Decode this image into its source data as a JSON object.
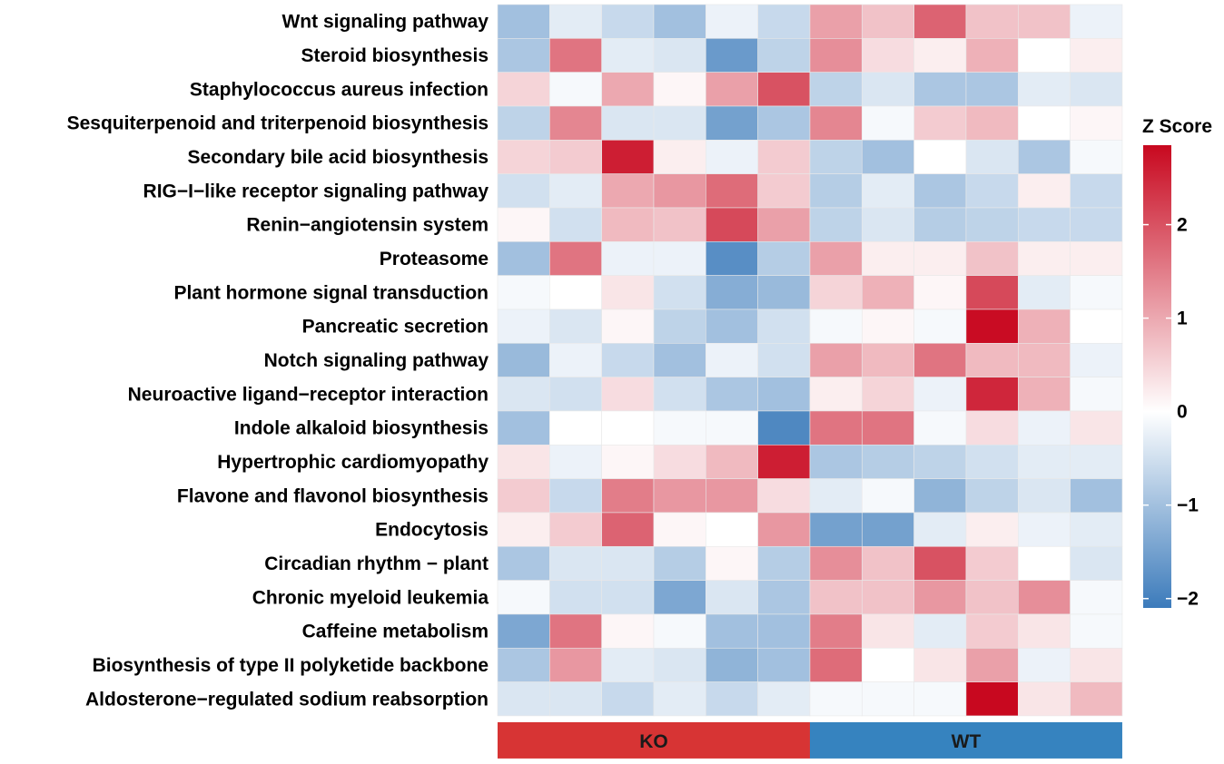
{
  "chart_data": {
    "type": "heatmap",
    "rows": [
      "Wnt signaling pathway",
      "Steroid biosynthesis",
      "Staphylococcus aureus infection",
      "Sesquiterpenoid and triterpenoid biosynthesis",
      "Secondary bile acid biosynthesis",
      "RIG−I−like receptor signaling pathway",
      "Renin−angiotensin system",
      "Proteasome",
      "Plant hormone signal transduction",
      "Pancreatic secretion",
      "Notch signaling pathway",
      "Neuroactive ligand−receptor interaction",
      "Indole alkaloid biosynthesis",
      "Hypertrophic cardiomyopathy",
      "Flavone and flavonol biosynthesis",
      "Endocytosis",
      "Circadian rhythm − plant",
      "Chronic myeloid leukemia",
      "Caffeine metabolism",
      "Biosynthesis of type II polyketide backbone",
      "Aldosterone−regulated sodium reabsorption"
    ],
    "groups": [
      {
        "label": "KO",
        "columns": 6,
        "color": "#d73434"
      },
      {
        "label": "WT",
        "columns": 6,
        "color": "#3683bf"
      }
    ],
    "values": [
      [
        -1.0,
        -0.3,
        -0.6,
        -1.0,
        -0.2,
        -0.6,
        1.1,
        0.7,
        1.8,
        0.7,
        0.7,
        -0.2
      ],
      [
        -0.9,
        1.6,
        -0.3,
        -0.4,
        -1.6,
        -0.7,
        1.3,
        0.4,
        0.2,
        0.9,
        0.0,
        0.2
      ],
      [
        0.5,
        -0.1,
        1.0,
        0.1,
        1.1,
        2.0,
        -0.7,
        -0.4,
        -0.9,
        -0.9,
        -0.3,
        -0.4
      ],
      [
        -0.7,
        1.4,
        -0.4,
        -0.4,
        -1.5,
        -0.9,
        1.4,
        -0.1,
        0.6,
        0.8,
        0.0,
        0.1
      ],
      [
        0.5,
        0.6,
        2.6,
        0.2,
        -0.2,
        0.6,
        -0.7,
        -1.0,
        0.0,
        -0.4,
        -0.9,
        -0.1
      ],
      [
        -0.5,
        -0.3,
        1.0,
        1.2,
        1.7,
        0.6,
        -0.8,
        -0.3,
        -0.9,
        -0.6,
        0.2,
        -0.6
      ],
      [
        0.1,
        -0.5,
        0.8,
        0.7,
        2.1,
        1.1,
        -0.7,
        -0.4,
        -0.8,
        -0.7,
        -0.6,
        -0.6
      ],
      [
        -1.0,
        1.6,
        -0.2,
        -0.2,
        -1.8,
        -0.8,
        1.1,
        0.2,
        0.2,
        0.7,
        0.2,
        0.2
      ],
      [
        -0.1,
        0.0,
        0.3,
        -0.5,
        -1.3,
        -1.1,
        0.5,
        0.9,
        0.1,
        2.1,
        -0.3,
        -0.1
      ],
      [
        -0.2,
        -0.4,
        0.1,
        -0.7,
        -1.0,
        -0.5,
        -0.1,
        0.1,
        -0.1,
        2.8,
        0.9,
        0.0
      ],
      [
        -1.1,
        -0.2,
        -0.6,
        -1.0,
        -0.2,
        -0.5,
        1.1,
        0.8,
        1.6,
        0.8,
        0.8,
        -0.2
      ],
      [
        -0.4,
        -0.5,
        0.4,
        -0.5,
        -0.9,
        -1.0,
        0.2,
        0.5,
        -0.2,
        2.5,
        0.9,
        -0.1
      ],
      [
        -1.0,
        0.0,
        0.0,
        -0.1,
        -0.1,
        -1.9,
        1.6,
        1.6,
        -0.1,
        0.4,
        -0.2,
        0.3
      ],
      [
        0.3,
        -0.2,
        0.1,
        0.4,
        0.8,
        2.6,
        -0.9,
        -0.8,
        -0.7,
        -0.5,
        -0.3,
        -0.3
      ],
      [
        0.6,
        -0.6,
        1.5,
        1.2,
        1.2,
        0.4,
        -0.3,
        -0.1,
        -1.2,
        -0.7,
        -0.4,
        -1.0
      ],
      [
        0.2,
        0.6,
        1.8,
        0.1,
        0.0,
        1.2,
        -1.5,
        -1.5,
        -0.3,
        0.2,
        -0.2,
        -0.3
      ],
      [
        -0.9,
        -0.4,
        -0.4,
        -0.8,
        0.1,
        -0.8,
        1.3,
        0.7,
        2.0,
        0.6,
        0.0,
        -0.4
      ],
      [
        -0.1,
        -0.5,
        -0.5,
        -1.4,
        -0.4,
        -0.9,
        0.7,
        0.7,
        1.2,
        0.7,
        1.3,
        -0.1
      ],
      [
        -1.4,
        1.6,
        0.1,
        -0.1,
        -1.0,
        -1.0,
        1.5,
        0.3,
        -0.3,
        0.6,
        0.3,
        -0.1
      ],
      [
        -0.9,
        1.2,
        -0.3,
        -0.4,
        -1.2,
        -1.0,
        1.7,
        0.0,
        0.3,
        1.1,
        -0.2,
        0.3
      ],
      [
        -0.4,
        -0.4,
        -0.6,
        -0.3,
        -0.6,
        -0.3,
        -0.1,
        -0.1,
        -0.1,
        3.2,
        0.3,
        0.8
      ]
    ],
    "legend": {
      "title": "Z Score",
      "min": -2.1,
      "max": 2.85,
      "ticks": [
        2,
        1,
        0,
        -1,
        -2
      ],
      "tick_labels": [
        "2",
        "1",
        "0",
        "−1",
        "−2"
      ],
      "low_color": "#3c7bbb",
      "mid_color": "#ffffff",
      "high_color": "#c8081f",
      "placement": "right"
    }
  }
}
